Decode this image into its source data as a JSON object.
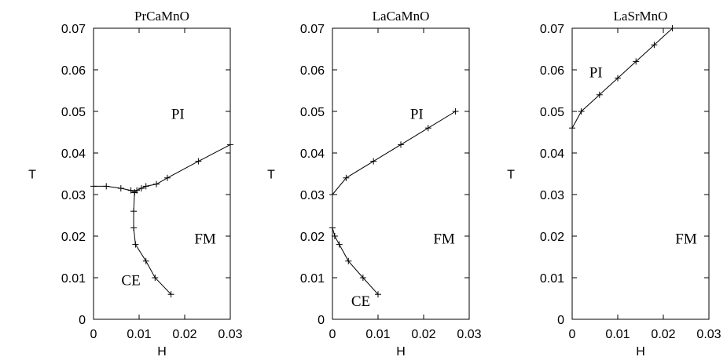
{
  "chart_data": [
    {
      "type": "line",
      "title": "PrCaMnO",
      "xlabel": "H",
      "ylabel": "T",
      "xlim": [
        0,
        0.03
      ],
      "ylim": [
        0,
        0.07
      ],
      "xticks": [
        "0",
        "0.01",
        "0.02",
        "0.03"
      ],
      "yticks": [
        "0",
        "0.01",
        "0.02",
        "0.03",
        "0.04",
        "0.05",
        "0.06",
        "0.07"
      ],
      "grid": false,
      "series": [
        {
          "points": [
            [
              0,
              0.032
            ],
            [
              0.0028,
              0.032
            ],
            [
              0.006,
              0.0315
            ],
            [
              0.0082,
              0.031
            ],
            [
              0.009,
              0.0305
            ],
            [
              0.0095,
              0.031
            ],
            [
              0.0105,
              0.0315
            ],
            [
              0.0115,
              0.032
            ],
            [
              0.0138,
              0.0325
            ],
            [
              0.0162,
              0.034
            ],
            [
              0.023,
              0.038
            ],
            [
              0.03,
              0.042
            ]
          ]
        },
        {
          "points": [
            [
              0.009,
              0.0305
            ],
            [
              0.0088,
              0.026
            ],
            [
              0.0088,
              0.022
            ],
            [
              0.0092,
              0.018
            ],
            [
              0.0115,
              0.014
            ],
            [
              0.0135,
              0.01
            ],
            [
              0.017,
              0.006
            ]
          ]
        }
      ],
      "annotations": [
        "PI",
        "FM",
        "CE"
      ]
    },
    {
      "type": "line",
      "title": "LaCaMnO",
      "xlabel": "H",
      "ylabel": "T",
      "xlim": [
        0,
        0.03
      ],
      "ylim": [
        0,
        0.07
      ],
      "xticks": [
        "0",
        "0.01",
        "0.02",
        "0.03"
      ],
      "yticks": [
        "0",
        "0.01",
        "0.02",
        "0.03",
        "0.04",
        "0.05",
        "0.06",
        "0.07"
      ],
      "grid": false,
      "series": [
        {
          "points": [
            [
              0,
              0.03
            ],
            [
              0.003,
              0.034
            ],
            [
              0.009,
              0.038
            ],
            [
              0.015,
              0.042
            ],
            [
              0.021,
              0.046
            ],
            [
              0.027,
              0.05
            ]
          ]
        },
        {
          "points": [
            [
              0,
              0.022
            ],
            [
              0.0005,
              0.02
            ],
            [
              0.0015,
              0.018
            ],
            [
              0.0035,
              0.014
            ],
            [
              0.0067,
              0.01
            ],
            [
              0.01,
              0.006
            ]
          ]
        }
      ],
      "annotations": [
        "PI",
        "FM",
        "CE"
      ]
    },
    {
      "type": "line",
      "title": "LaSrMnO",
      "xlabel": "H",
      "ylabel": "T",
      "xlim": [
        0,
        0.03
      ],
      "ylim": [
        0,
        0.07
      ],
      "xticks": [
        "0",
        "0.01",
        "0.02",
        "0.03"
      ],
      "yticks": [
        "0",
        "0.01",
        "0.02",
        "0.03",
        "0.04",
        "0.05",
        "0.06",
        "0.07"
      ],
      "grid": false,
      "series": [
        {
          "points": [
            [
              0,
              0.046
            ],
            [
              0.002,
              0.05
            ],
            [
              0.006,
              0.054
            ],
            [
              0.01,
              0.058
            ],
            [
              0.014,
              0.062
            ],
            [
              0.018,
              0.066
            ],
            [
              0.022,
              0.07
            ]
          ]
        }
      ],
      "annotations": [
        "PI",
        "FM"
      ]
    }
  ]
}
